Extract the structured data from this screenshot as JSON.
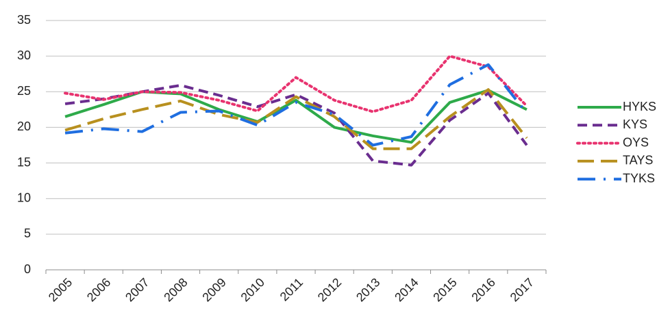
{
  "chart_data": {
    "type": "line",
    "categories": [
      "2005",
      "2006",
      "2007",
      "2008",
      "2009",
      "2010",
      "2011",
      "2012",
      "2013",
      "2014",
      "2015",
      "2016",
      "2017"
    ],
    "series": [
      {
        "name": "HYKS",
        "color": "#2eaa4a",
        "dash": "solid",
        "values": [
          21.5,
          23.2,
          25,
          24.7,
          22.5,
          20.8,
          23.8,
          20,
          18.8,
          17.9,
          23.5,
          25.2,
          22.5
        ]
      },
      {
        "name": "KYS",
        "color": "#6a2d8f",
        "dash": "dash",
        "values": [
          23.3,
          24,
          25,
          25.9,
          24.5,
          22.9,
          24.6,
          22,
          15.3,
          14.7,
          21,
          24.8,
          17.5
        ]
      },
      {
        "name": "OYS",
        "color": "#e8336f",
        "dash": "dot",
        "values": [
          24.8,
          23.9,
          25,
          24.9,
          23.8,
          22.3,
          27,
          23.8,
          22.2,
          23.8,
          30,
          28.5,
          23
        ]
      },
      {
        "name": "TAYS",
        "color": "#b8901f",
        "dash": "longdash",
        "values": [
          19.6,
          21.2,
          22.5,
          23.7,
          21.8,
          20.7,
          24.3,
          21.5,
          17,
          17,
          21.5,
          25.3,
          18.5
        ]
      },
      {
        "name": "TYKS",
        "color": "#1f6ee0",
        "dash": "dashdot",
        "values": [
          19.2,
          19.8,
          19.4,
          22.1,
          22.3,
          20.3,
          23.5,
          21.8,
          17.5,
          18.7,
          26,
          28.8,
          22
        ]
      }
    ],
    "ylim": [
      0,
      35
    ],
    "yticks": [
      0,
      5,
      10,
      15,
      20,
      25,
      30,
      35
    ],
    "grid": true,
    "legend": "right"
  }
}
